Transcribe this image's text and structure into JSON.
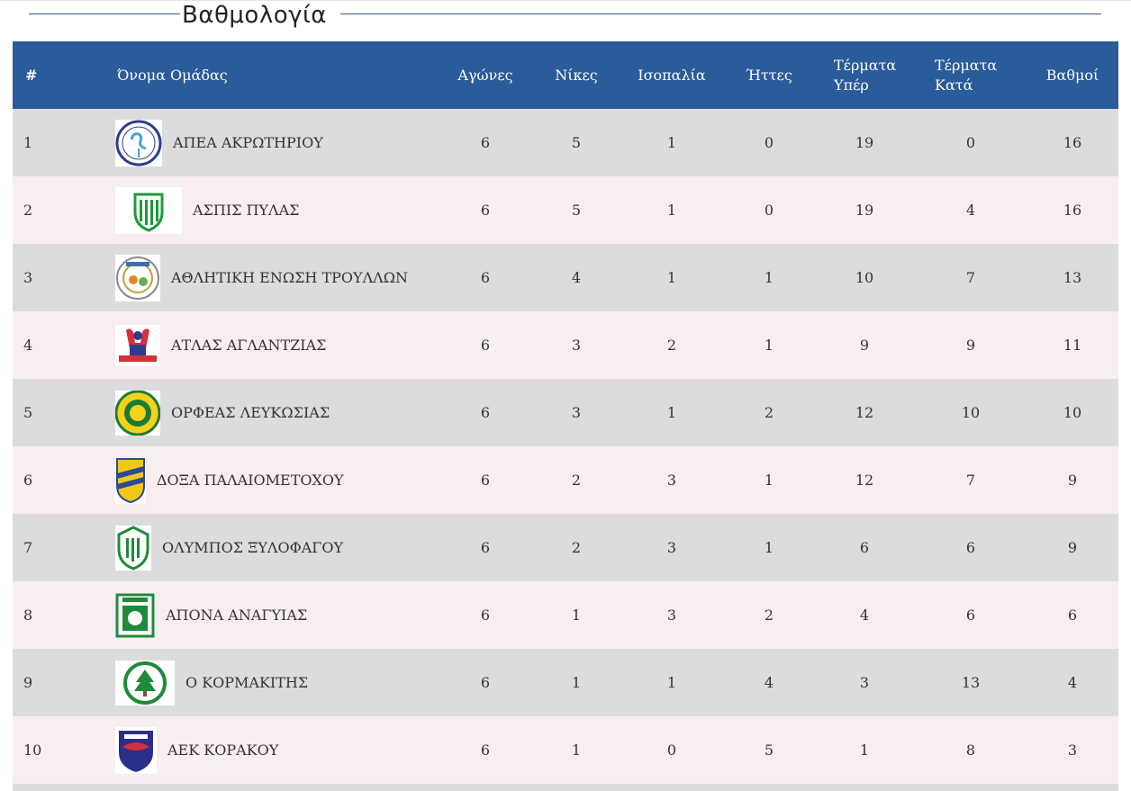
{
  "page": {
    "title": "Βαθμολογία"
  },
  "table": {
    "headers": {
      "pos": "#",
      "team": "Όνομα Ομάδας",
      "played": "Αγώνες",
      "wins": "Νίκες",
      "draws": "Ισοπαλία",
      "losses": "Ήττες",
      "gf_line1": "Τέρματα",
      "gf_line2": "Υπέρ",
      "ga_line1": "Τέρματα",
      "ga_line2": "Κατά",
      "points": "Βαθμοί"
    },
    "rows": [
      {
        "pos": "1",
        "team": "ΑΠΕΑ ΑΚΡΩΤΗΡΙΟΥ",
        "logo_icon": "flamingo-crest-icon",
        "played": "6",
        "wins": "5",
        "draws": "1",
        "losses": "0",
        "gf": "19",
        "ga": "0",
        "points": "16"
      },
      {
        "pos": "2",
        "team": "ΑΣΠΙΣ ΠΥΛΑΣ",
        "logo_icon": "green-shield-crest-icon",
        "played": "6",
        "wins": "5",
        "draws": "1",
        "losses": "0",
        "gf": "19",
        "ga": "4",
        "points": "16"
      },
      {
        "pos": "3",
        "team": "ΑΘΛΗΤΙΚΗ ΕΝΩΣΗ ΤΡΟΥΛΛΩΝ",
        "logo_icon": "round-crest-icon",
        "played": "6",
        "wins": "4",
        "draws": "1",
        "losses": "1",
        "gf": "10",
        "ga": "7",
        "points": "13"
      },
      {
        "pos": "4",
        "team": "ΑΤΛΑΣ ΑΓΛΑΝΤΖΙΑΣ",
        "logo_icon": "atlas-figure-crest-icon",
        "played": "6",
        "wins": "3",
        "draws": "2",
        "losses": "1",
        "gf": "9",
        "ga": "9",
        "points": "11"
      },
      {
        "pos": "5",
        "team": "ΟΡΦΕΑΣ ΛΕΥΚΩΣΙΑΣ",
        "logo_icon": "yellow-green-round-crest-icon",
        "played": "6",
        "wins": "3",
        "draws": "1",
        "losses": "2",
        "gf": "12",
        "ga": "10",
        "points": "10"
      },
      {
        "pos": "6",
        "team": "ΔΟΞΑ ΠΑΛΑΙΟΜΕΤΟΧΟΥ",
        "logo_icon": "yellow-blue-shield-crest-icon",
        "played": "6",
        "wins": "2",
        "draws": "3",
        "losses": "1",
        "gf": "12",
        "ga": "7",
        "points": "9"
      },
      {
        "pos": "7",
        "team": "ΟΛΥΜΠΟΣ ΞΥΛΟΦΑΓΟΥ",
        "logo_icon": "green-striped-shield-crest-icon",
        "played": "6",
        "wins": "2",
        "draws": "3",
        "losses": "1",
        "gf": "6",
        "ga": "6",
        "points": "9"
      },
      {
        "pos": "8",
        "team": "ΑΠΟΝΑ ΑΝΑΓΥΙΑΣ",
        "logo_icon": "green-square-crest-icon",
        "played": "6",
        "wins": "1",
        "draws": "3",
        "losses": "2",
        "gf": "4",
        "ga": "6",
        "points": "6"
      },
      {
        "pos": "9",
        "team": "Ο ΚΟΡΜΑΚΙΤΗΣ",
        "logo_icon": "cedar-round-crest-icon",
        "played": "6",
        "wins": "1",
        "draws": "1",
        "losses": "4",
        "gf": "3",
        "ga": "13",
        "points": "4"
      },
      {
        "pos": "10",
        "team": "ΑΕΚ ΚΟΡΑΚΟΥ",
        "logo_icon": "blue-red-shield-crest-icon",
        "played": "6",
        "wins": "1",
        "draws": "0",
        "losses": "5",
        "gf": "1",
        "ga": "8",
        "points": "3"
      }
    ]
  },
  "colors": {
    "header_bg": "#2a5b9a",
    "row_odd": "#dcdcdc",
    "row_even": "#f8eeef",
    "title_rule": "#2b5b8e"
  }
}
